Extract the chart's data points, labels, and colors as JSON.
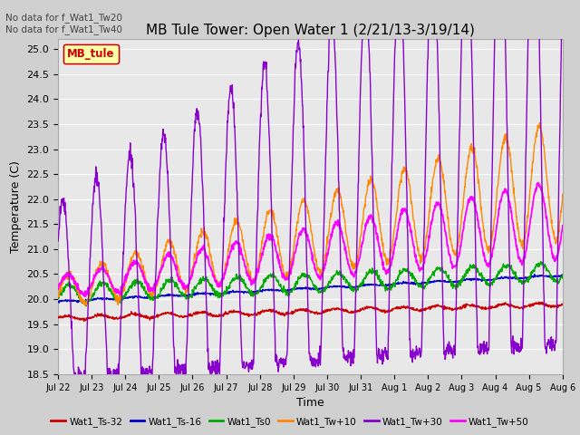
{
  "title": "MB Tule Tower: Open Water 1 (2/21/13-3/19/14)",
  "xlabel": "Time",
  "ylabel": "Temperature (C)",
  "ylim": [
    18.5,
    25.2
  ],
  "yticks": [
    18.5,
    19.0,
    19.5,
    20.0,
    20.5,
    21.0,
    21.5,
    22.0,
    22.5,
    23.0,
    23.5,
    24.0,
    24.5,
    25.0
  ],
  "x_labels": [
    "Jul 22",
    "Jul 23",
    "Jul 24",
    "Jul 25",
    "Jul 26",
    "Jul 27",
    "Jul 28",
    "Jul 29",
    "Jul 30",
    "Jul 31",
    "Aug 1",
    "Aug 2",
    "Aug 3",
    "Aug 4",
    "Aug 5",
    "Aug 6"
  ],
  "n_days": 16,
  "annotation_text": "No data for f_Wat1_Tw20\nNo data for f_Wat1_Tw40",
  "legend_box_text": "MB_tule",
  "colors": {
    "Ts32": "#cc0000",
    "Ts16": "#0000cc",
    "Ts0": "#00aa00",
    "Tw10": "#ff8800",
    "Tw30": "#8800cc",
    "Tw50": "#ff00ff"
  },
  "bg_color": "#e8e8e8",
  "grid_color": "#ffffff",
  "title_fontsize": 11,
  "axis_fontsize": 9,
  "tick_fontsize": 8
}
